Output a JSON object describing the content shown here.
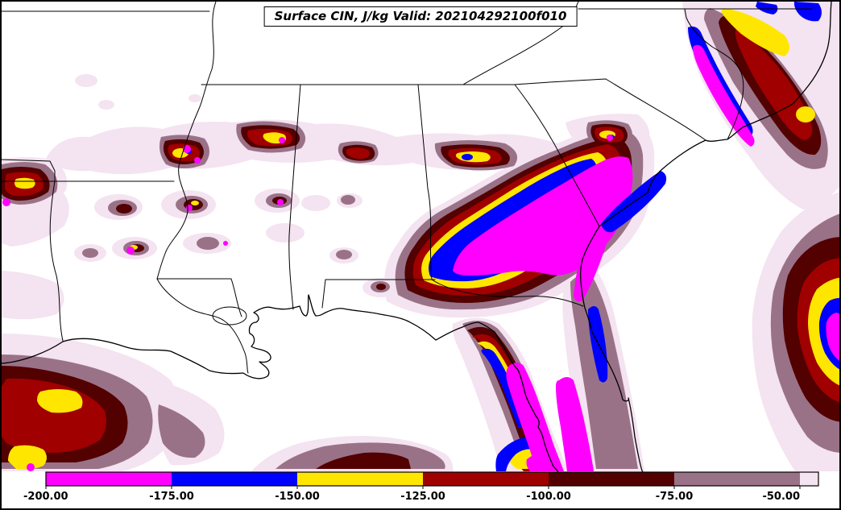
{
  "title": "Surface CIN, J/kg Valid: 202104292100f010",
  "field": "Surface CIN",
  "units": "J/kg",
  "valid_stamp": "202104292100f010",
  "palette": {
    "magenta": "#FF00FF",
    "blue": "#0000FF",
    "yellow": "#FFE600",
    "red": "#A00000",
    "maroon": "#520000",
    "mauve": "#9A7288",
    "palepink": "#F4E3F0",
    "background": "#FFFFFF",
    "line": "#000000"
  },
  "colorbar": {
    "orientation": "horizontal",
    "ticks": [
      "-200.00",
      "-175.00",
      "-150.00",
      "-125.00",
      "-100.00",
      "-75.00",
      "-50.00"
    ],
    "tick_values": [
      -200,
      -175,
      -150,
      -125,
      -100,
      -75,
      -50
    ],
    "segments": [
      {
        "range": "-200 to -175",
        "color": "magenta"
      },
      {
        "range": "-175 to -150",
        "color": "blue"
      },
      {
        "range": "-150 to -125",
        "color": "yellow"
      },
      {
        "range": "-125 to -100",
        "color": "red"
      },
      {
        "range": "-100 to -75",
        "color": "maroon"
      },
      {
        "range": "-75 to -50",
        "color": "mauve"
      },
      {
        "range": "greater than -50",
        "color": "palepink",
        "extend": true
      }
    ]
  }
}
